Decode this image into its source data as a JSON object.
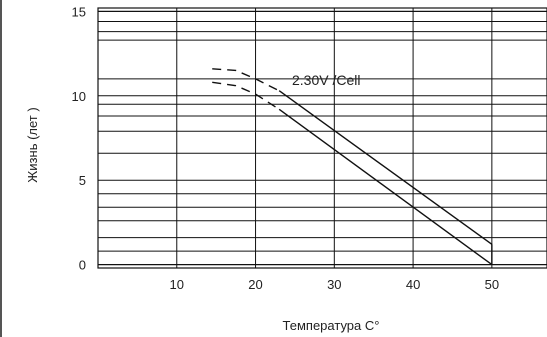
{
  "chart_data": {
    "type": "line",
    "title": "",
    "xlabel": "Температура C°",
    "ylabel": "Жизнь (лет )",
    "x_ticks": [
      10,
      20,
      30,
      40,
      50
    ],
    "y_ticks": [
      0,
      5,
      10,
      15
    ],
    "xlim": [
      0,
      57
    ],
    "ylim": [
      -0.2,
      15.2
    ],
    "grid": true,
    "series": [
      {
        "name": "2.30V /Cell",
        "upper_boundary": [
          {
            "x": 14.5,
            "y": 11.6
          },
          {
            "x": 17.5,
            "y": 11.5
          },
          {
            "x": 20,
            "y": 11.0
          },
          {
            "x": 23,
            "y": 10.3
          },
          {
            "x": 50,
            "y": 1.2
          }
        ],
        "lower_boundary": [
          {
            "x": 14.5,
            "y": 10.8
          },
          {
            "x": 17.5,
            "y": 10.6
          },
          {
            "x": 20,
            "y": 10.1
          },
          {
            "x": 23,
            "y": 9.2
          },
          {
            "x": 50,
            "y": 0.0
          }
        ],
        "dashed_until_x": 23
      }
    ]
  }
}
